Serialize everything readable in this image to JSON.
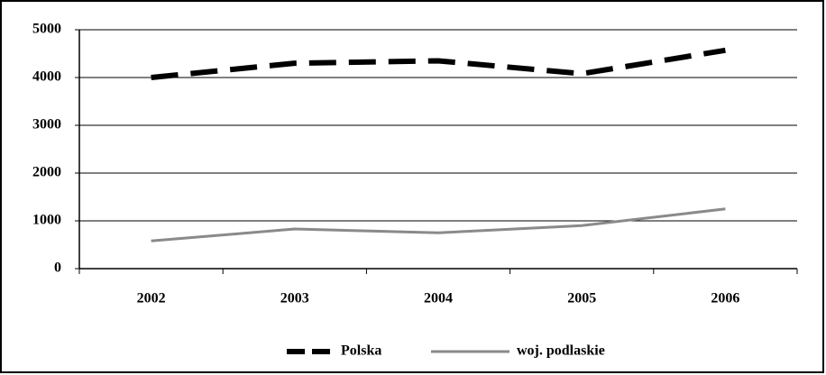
{
  "chart_data": {
    "type": "line",
    "categories": [
      "2002",
      "2003",
      "2004",
      "2005",
      "2006"
    ],
    "series": [
      {
        "name": "Polska",
        "color": "#000000",
        "dashed": true,
        "values": [
          4000,
          4300,
          4350,
          4080,
          4570
        ]
      },
      {
        "name": "woj. podlaskie",
        "color": "#8a8a8a",
        "dashed": false,
        "values": [
          580,
          830,
          750,
          900,
          1250
        ]
      }
    ],
    "ylim": [
      0,
      5000
    ],
    "yticks": [
      0,
      1000,
      2000,
      3000,
      4000,
      5000
    ],
    "grid": true,
    "legend": "bottom"
  }
}
